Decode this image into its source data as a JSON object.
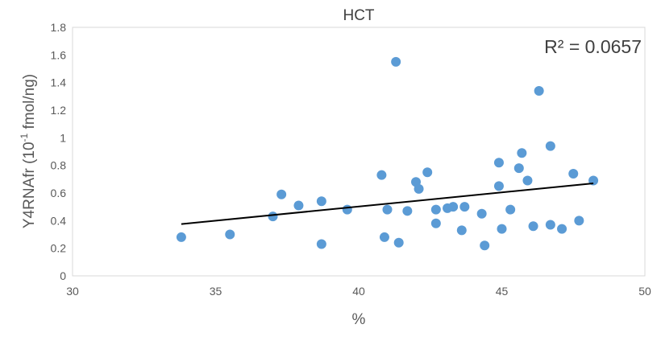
{
  "chart_data": {
    "type": "scatter",
    "title": "HCT",
    "xlabel": "%",
    "ylabel_main": "Y4RNAfr (10",
    "ylabel_sup": "-1",
    "ylabel_tail": " fmol/ng)",
    "xlim": [
      30,
      50
    ],
    "ylim": [
      0,
      1.8
    ],
    "x_ticks": [
      30,
      35,
      40,
      45,
      50
    ],
    "y_ticks": [
      0,
      0.2,
      0.4,
      0.6,
      0.8,
      1,
      1.2,
      1.4,
      1.6,
      1.8
    ],
    "grid": false,
    "legend": "none",
    "annotation": "R² = 0.0657",
    "marker_color": "#5b9bd5",
    "trendline_color": "#000000",
    "trendline": {
      "x": [
        33.8,
        48.2
      ],
      "y": [
        0.375,
        0.67
      ]
    },
    "points": [
      {
        "x": 33.8,
        "y": 0.28
      },
      {
        "x": 35.5,
        "y": 0.3
      },
      {
        "x": 37.0,
        "y": 0.43
      },
      {
        "x": 37.3,
        "y": 0.59
      },
      {
        "x": 37.9,
        "y": 0.51
      },
      {
        "x": 38.7,
        "y": 0.54
      },
      {
        "x": 38.7,
        "y": 0.23
      },
      {
        "x": 39.6,
        "y": 0.48
      },
      {
        "x": 40.8,
        "y": 0.73
      },
      {
        "x": 40.9,
        "y": 0.28
      },
      {
        "x": 41.0,
        "y": 0.48
      },
      {
        "x": 41.3,
        "y": 1.55
      },
      {
        "x": 41.4,
        "y": 0.24
      },
      {
        "x": 41.7,
        "y": 0.47
      },
      {
        "x": 42.0,
        "y": 0.68
      },
      {
        "x": 42.1,
        "y": 0.63
      },
      {
        "x": 42.4,
        "y": 0.75
      },
      {
        "x": 42.7,
        "y": 0.48
      },
      {
        "x": 42.7,
        "y": 0.38
      },
      {
        "x": 43.1,
        "y": 0.49
      },
      {
        "x": 43.3,
        "y": 0.5
      },
      {
        "x": 43.6,
        "y": 0.33
      },
      {
        "x": 43.7,
        "y": 0.5
      },
      {
        "x": 44.3,
        "y": 0.45
      },
      {
        "x": 44.4,
        "y": 0.22
      },
      {
        "x": 44.9,
        "y": 0.82
      },
      {
        "x": 44.9,
        "y": 0.65
      },
      {
        "x": 45.0,
        "y": 0.34
      },
      {
        "x": 45.3,
        "y": 0.48
      },
      {
        "x": 45.6,
        "y": 0.78
      },
      {
        "x": 45.7,
        "y": 0.89
      },
      {
        "x": 45.9,
        "y": 0.69
      },
      {
        "x": 46.1,
        "y": 0.36
      },
      {
        "x": 46.3,
        "y": 1.34
      },
      {
        "x": 46.7,
        "y": 0.94
      },
      {
        "x": 46.7,
        "y": 0.37
      },
      {
        "x": 47.1,
        "y": 0.34
      },
      {
        "x": 47.5,
        "y": 0.74
      },
      {
        "x": 47.7,
        "y": 0.4
      },
      {
        "x": 48.2,
        "y": 0.69
      }
    ]
  }
}
